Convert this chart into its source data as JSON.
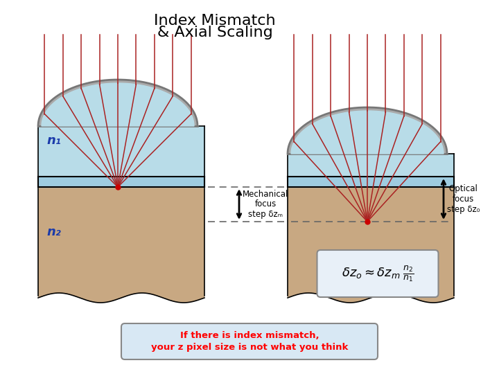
{
  "title_line1": "Index Mismatch",
  "title_line2": "& Axial Scaling",
  "title_fontsize": 16,
  "bg_color": "#ffffff",
  "lens_fill_color": "#b8dce8",
  "lens_rim_color": "#888888",
  "imm_color": "#b8dce8",
  "coverslip_color": "#9ecce0",
  "sample_color": "#c8a882",
  "ray_color": "#aa2222",
  "n1_label": "n₁",
  "n2_label": "n₂",
  "mech_label": "Mechanical\nfocus\nstep δzₘ",
  "opt_label": "Optical\nfocus\nstep δz₀",
  "arrow_color": "#000000",
  "dashed_color": "#666666",
  "eq_bg": "#e8f0f8",
  "eq_edge": "#888888",
  "bt_bg": "#d8e8f4",
  "bt_edge": "#888888",
  "bottom_text_line1": "If there is index mismatch,",
  "bottom_text_line2": "your z pixel size is not what you think"
}
